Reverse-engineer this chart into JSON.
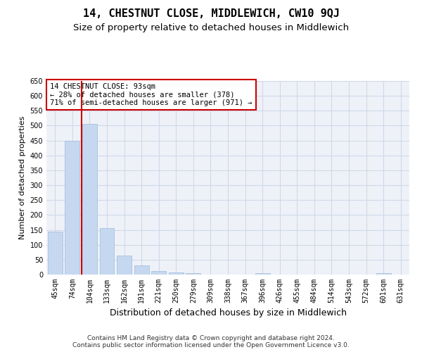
{
  "title": "14, CHESTNUT CLOSE, MIDDLEWICH, CW10 9QJ",
  "subtitle": "Size of property relative to detached houses in Middlewich",
  "xlabel": "Distribution of detached houses by size in Middlewich",
  "ylabel": "Number of detached properties",
  "categories": [
    "45sqm",
    "74sqm",
    "104sqm",
    "133sqm",
    "162sqm",
    "191sqm",
    "221sqm",
    "250sqm",
    "279sqm",
    "309sqm",
    "338sqm",
    "367sqm",
    "396sqm",
    "426sqm",
    "455sqm",
    "484sqm",
    "514sqm",
    "543sqm",
    "572sqm",
    "601sqm",
    "631sqm"
  ],
  "values": [
    145,
    450,
    507,
    157,
    65,
    30,
    12,
    7,
    5,
    0,
    0,
    0,
    5,
    0,
    0,
    0,
    0,
    0,
    0,
    5,
    0
  ],
  "bar_color": "#c5d8f0",
  "bar_edgecolor": "#a0b8d8",
  "grid_color": "#d0d8e8",
  "background_color": "#eef2f8",
  "vline_x_index": 2,
  "vline_color": "#cc0000",
  "annotation_text": "14 CHESTNUT CLOSE: 93sqm\n← 28% of detached houses are smaller (378)\n71% of semi-detached houses are larger (971) →",
  "annotation_box_color": "#cc0000",
  "ylim": [
    0,
    650
  ],
  "yticks": [
    0,
    50,
    100,
    150,
    200,
    250,
    300,
    350,
    400,
    450,
    500,
    550,
    600,
    650
  ],
  "footer_line1": "Contains HM Land Registry data © Crown copyright and database right 2024.",
  "footer_line2": "Contains public sector information licensed under the Open Government Licence v3.0.",
  "title_fontsize": 11,
  "subtitle_fontsize": 9.5,
  "xlabel_fontsize": 9,
  "ylabel_fontsize": 8,
  "tick_fontsize": 7,
  "annotation_fontsize": 7.5,
  "footer_fontsize": 6.5
}
